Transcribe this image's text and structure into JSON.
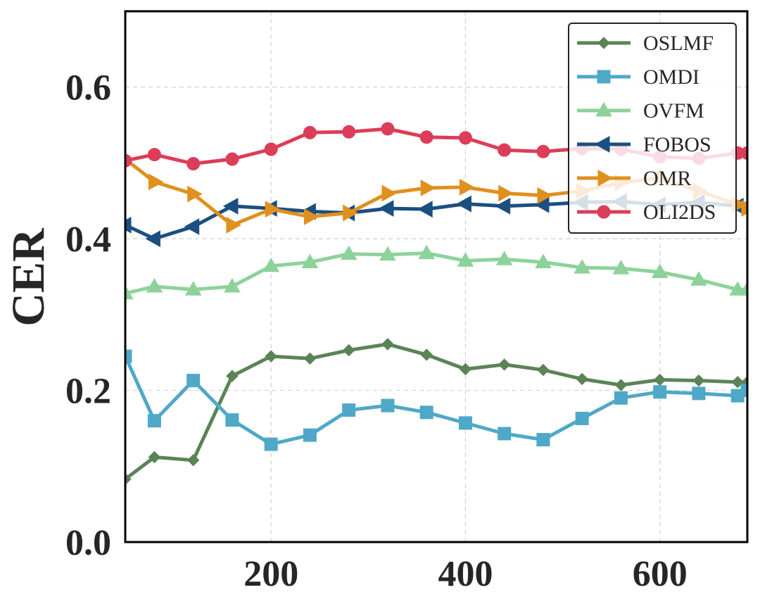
{
  "chart_data": {
    "type": "line",
    "title": "",
    "xlabel": "",
    "ylabel": "CER",
    "xlim": [
      50,
      690
    ],
    "ylim": [
      0.0,
      0.7
    ],
    "x_ticks": [
      200,
      400,
      600
    ],
    "y_ticks": [
      0.0,
      0.2,
      0.4,
      0.6
    ],
    "x_tick_labels": [
      "200",
      "400",
      "600"
    ],
    "y_tick_labels": [
      "0.0",
      "0.2",
      "0.4",
      "0.6"
    ],
    "grid": true,
    "legend_position": "top-right",
    "series": [
      {
        "name": "OSLMF",
        "color": "#5a8456",
        "marker": "diamond",
        "x": [
          50,
          80,
          120,
          160,
          200,
          240,
          280,
          320,
          360,
          400,
          440,
          480,
          520,
          560,
          600,
          640,
          680,
          690
        ],
        "y": [
          0.083,
          0.112,
          0.108,
          0.219,
          0.245,
          0.242,
          0.253,
          0.261,
          0.247,
          0.228,
          0.234,
          0.227,
          0.215,
          0.207,
          0.214,
          0.213,
          0.211,
          0.211
        ]
      },
      {
        "name": "OMDI",
        "color": "#4fa8c8",
        "marker": "square",
        "x": [
          50,
          80,
          120,
          160,
          200,
          240,
          280,
          320,
          360,
          400,
          440,
          480,
          520,
          560,
          600,
          640,
          680,
          690
        ],
        "y": [
          0.245,
          0.16,
          0.213,
          0.161,
          0.129,
          0.141,
          0.174,
          0.18,
          0.171,
          0.157,
          0.143,
          0.135,
          0.163,
          0.19,
          0.198,
          0.196,
          0.193,
          0.2
        ]
      },
      {
        "name": "OVFM",
        "color": "#8dd29a",
        "marker": "triangle-up",
        "x": [
          50,
          80,
          120,
          160,
          200,
          240,
          280,
          320,
          360,
          400,
          440,
          480,
          520,
          560,
          600,
          640,
          680,
          690
        ],
        "y": [
          0.328,
          0.337,
          0.333,
          0.337,
          0.364,
          0.369,
          0.38,
          0.379,
          0.381,
          0.371,
          0.373,
          0.369,
          0.362,
          0.361,
          0.356,
          0.346,
          0.333,
          0.333
        ]
      },
      {
        "name": "FOBOS",
        "color": "#1b4f80",
        "marker": "triangle-left",
        "x": [
          50,
          80,
          120,
          160,
          200,
          240,
          280,
          320,
          360,
          400,
          440,
          480,
          520,
          560,
          600,
          640,
          680,
          690
        ],
        "y": [
          0.418,
          0.4,
          0.416,
          0.443,
          0.44,
          0.436,
          0.434,
          0.44,
          0.439,
          0.446,
          0.443,
          0.445,
          0.448,
          0.449,
          0.445,
          0.448,
          0.443,
          0.443
        ]
      },
      {
        "name": "OMR",
        "color": "#e0901e",
        "marker": "triangle-right",
        "x": [
          50,
          80,
          120,
          160,
          200,
          240,
          280,
          320,
          360,
          400,
          440,
          480,
          520,
          560,
          600,
          640,
          680,
          690
        ],
        "y": [
          0.505,
          0.475,
          0.459,
          0.418,
          0.439,
          0.429,
          0.434,
          0.46,
          0.467,
          0.468,
          0.46,
          0.457,
          0.463,
          0.474,
          0.48,
          0.463,
          0.445,
          0.44
        ]
      },
      {
        "name": "OLI2DS",
        "color": "#dc3d58",
        "marker": "circle",
        "x": [
          50,
          80,
          120,
          160,
          200,
          240,
          280,
          320,
          360,
          400,
          440,
          480,
          520,
          560,
          600,
          640,
          680,
          690
        ],
        "y": [
          0.503,
          0.511,
          0.499,
          0.505,
          0.518,
          0.54,
          0.541,
          0.545,
          0.534,
          0.533,
          0.517,
          0.515,
          0.519,
          0.518,
          0.508,
          0.506,
          0.513,
          0.513
        ]
      }
    ]
  }
}
